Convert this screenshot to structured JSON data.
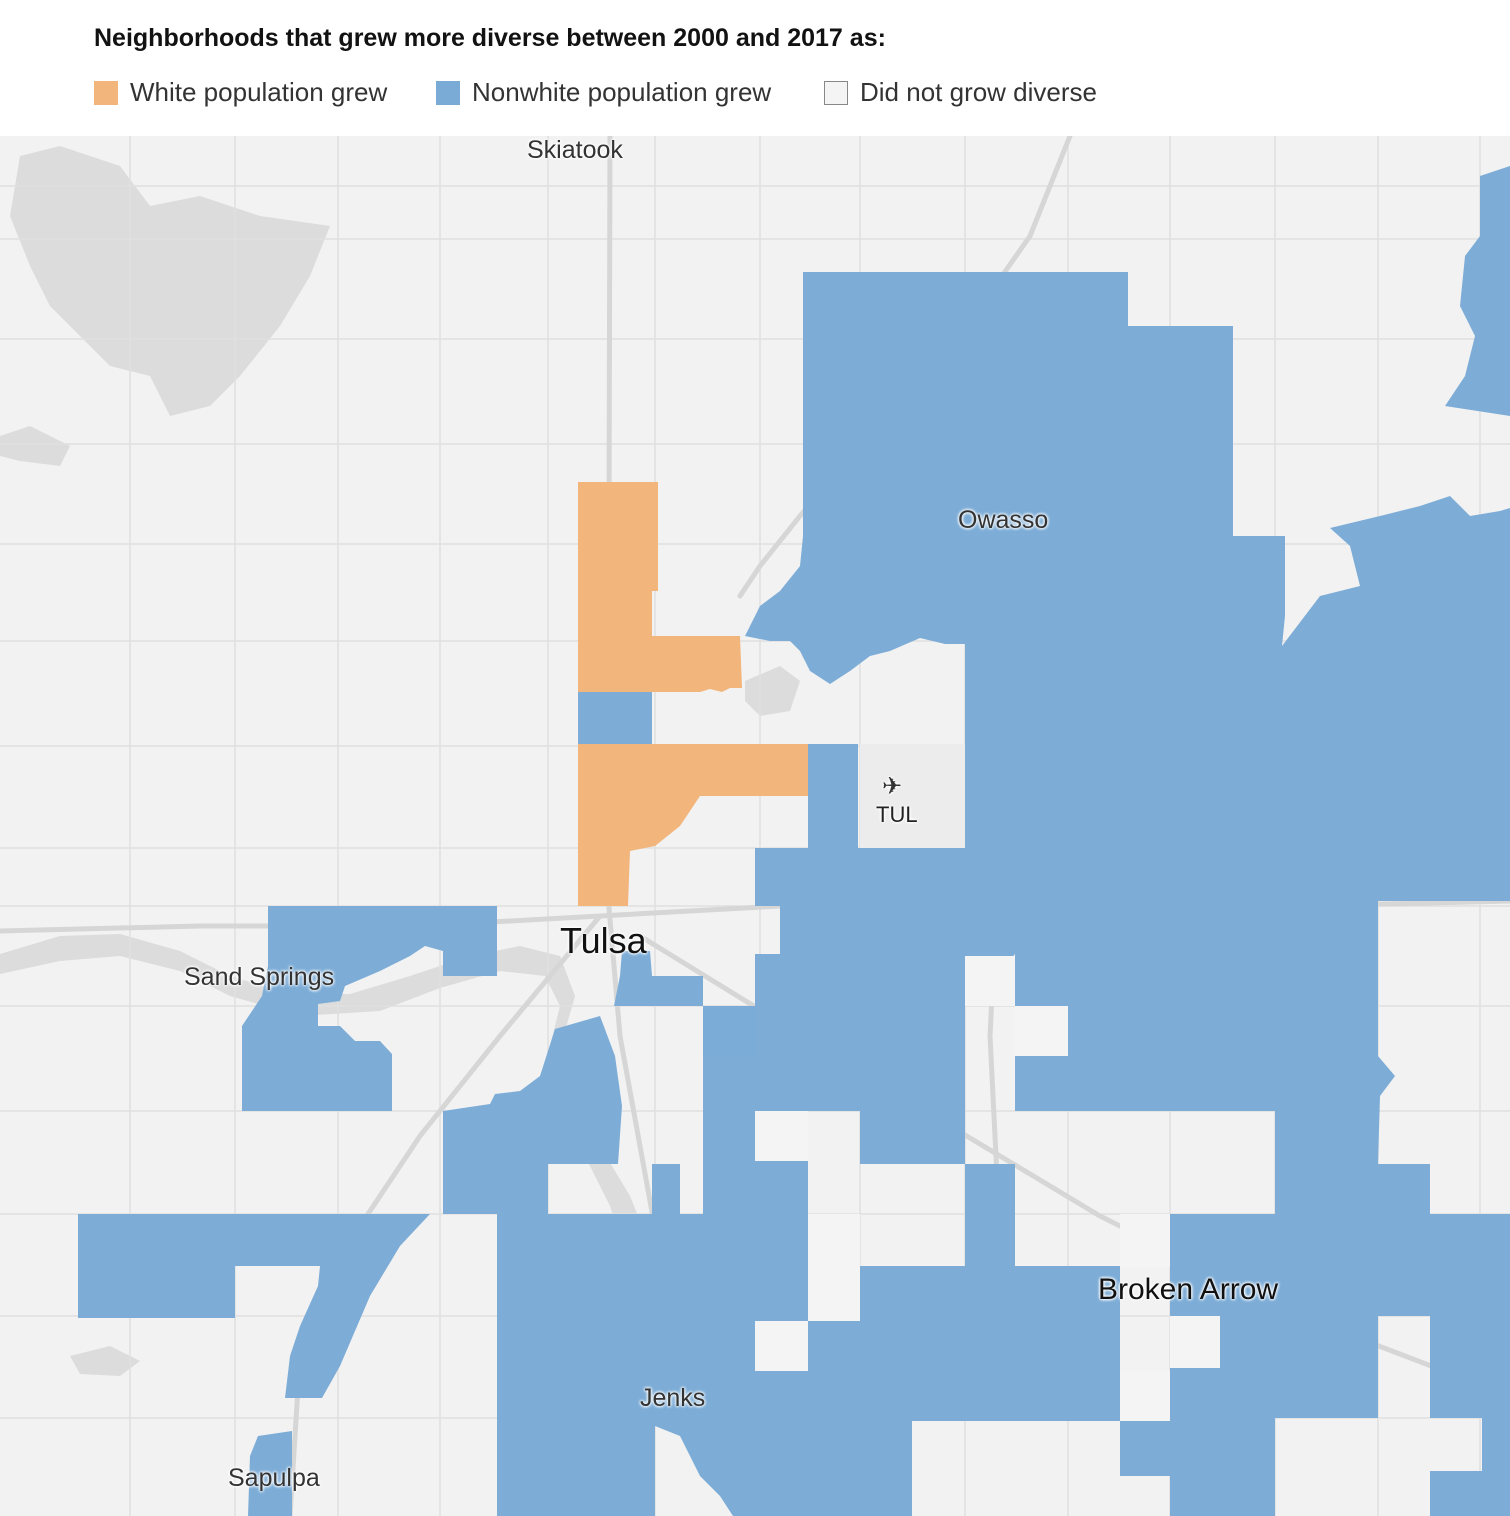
{
  "title": "Neighborhoods that grew more diverse between 2000 and 2017 as:",
  "legend": [
    {
      "label": "White population grew",
      "color": "#f2b57c"
    },
    {
      "label": "Nonwhite population grew",
      "color": "#7aabd6"
    },
    {
      "label": "Did not grow diverse",
      "color": "#f4f4f4"
    }
  ],
  "places": {
    "skiatook": "Skiatook",
    "owasso": "Owasso",
    "tulsa": "Tulsa",
    "sand_springs": "Sand Springs",
    "tul": "TUL",
    "broken_arrow": "Broken Arrow",
    "jenks": "Jenks",
    "sapulpa": "Sapulpa"
  },
  "icons": {
    "airport": "airplane-icon"
  },
  "colors": {
    "background": "#f2f2f2",
    "water": "#dcdcdc",
    "roads": "#e2e2e2",
    "highways": "#d9d9d9",
    "white_grew": "#f2b57c",
    "nonwhite_grew": "#7aabd6"
  }
}
